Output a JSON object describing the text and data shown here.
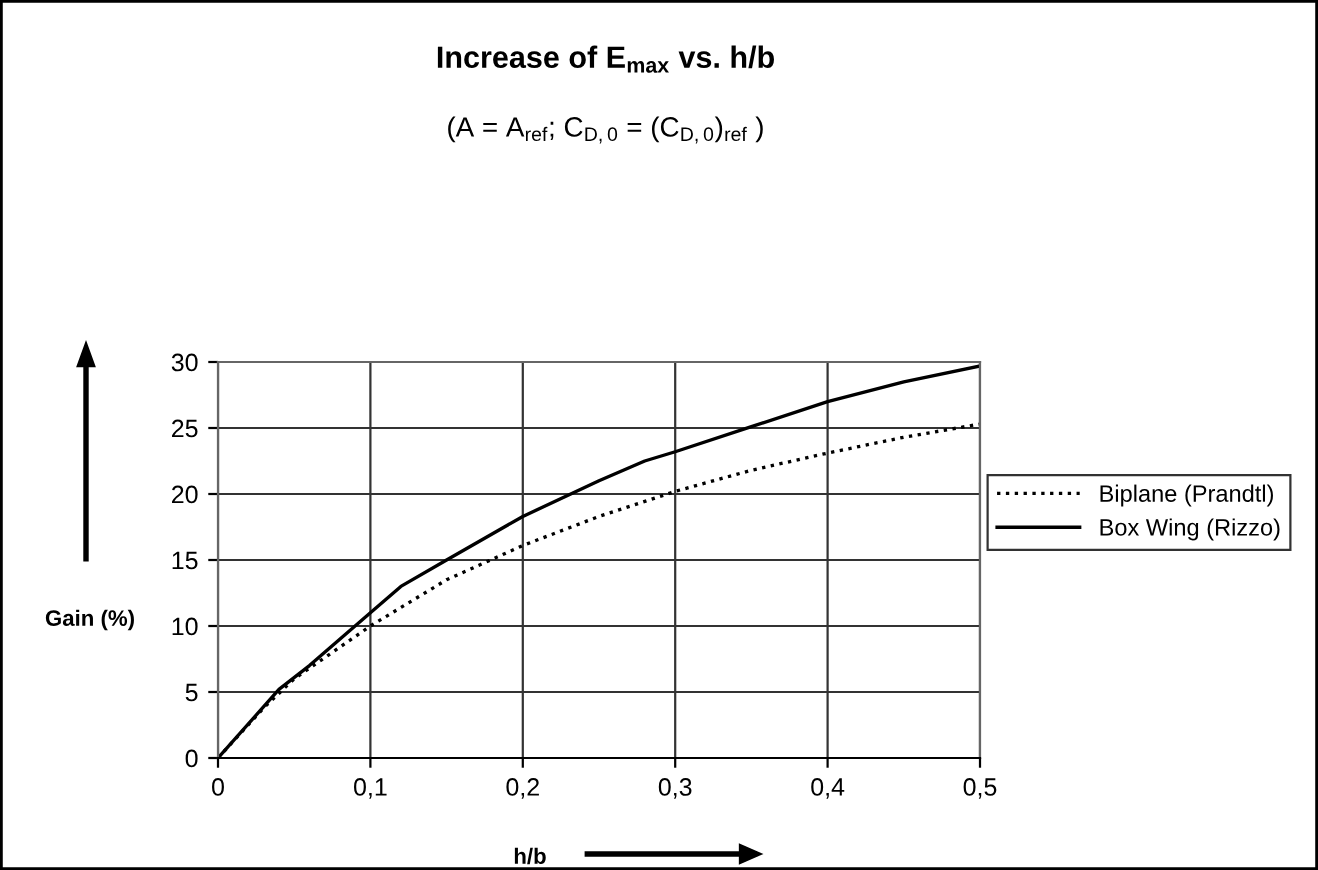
{
  "chart_data": {
    "type": "line",
    "title": "Increase of E$_{max}$ vs. h/b",
    "subtitle": "(A = A$_{ref}$; C$_{D,0}$ = (C$_{D,0}$)$_{ref}$ )",
    "xlabel": "h/b",
    "ylabel": "Gain (%)",
    "series": [
      {
        "name": "Biplane (Prandtl)",
        "color": "#000000",
        "line_style": "dotted",
        "x": [
          0,
          0.03,
          0.05,
          0.1,
          0.15,
          0.2,
          0.25,
          0.3,
          0.35,
          0.4,
          0.45,
          0.5
        ],
        "values": [
          0,
          3.8,
          6,
          10,
          13.5,
          16.1,
          18.3,
          20.2,
          21.8,
          23.1,
          24.3,
          25.3
        ]
      },
      {
        "name": "Box Wing (Rizzo)",
        "color": "#000000",
        "line_style": "solid",
        "x": [
          0,
          0.04,
          0.06,
          0.1,
          0.12,
          0.15,
          0.2,
          0.25,
          0.28,
          0.3,
          0.35,
          0.4,
          0.45,
          0.5
        ],
        "values": [
          0,
          5.2,
          7,
          11,
          13,
          15,
          18.3,
          21,
          22.5,
          23.2,
          25.1,
          27,
          28.5,
          29.7
        ]
      }
    ],
    "xlim": [
      0,
      0.5
    ],
    "xticks": [
      0,
      {
        "value": 0.1,
        "label": "0,1"
      },
      {
        "value": 0.2,
        "label": "0,2"
      },
      {
        "value": 0.3,
        "label": "0,3"
      },
      {
        "value": 0.4,
        "label": "0,4"
      },
      {
        "value": 0.5,
        "label": "0,5"
      }
    ],
    "ylim": [
      0,
      30
    ],
    "yticks": [
      0,
      5,
      10,
      15,
      20,
      25,
      30
    ],
    "grid": true,
    "legend": "right",
    "marker": "none"
  }
}
